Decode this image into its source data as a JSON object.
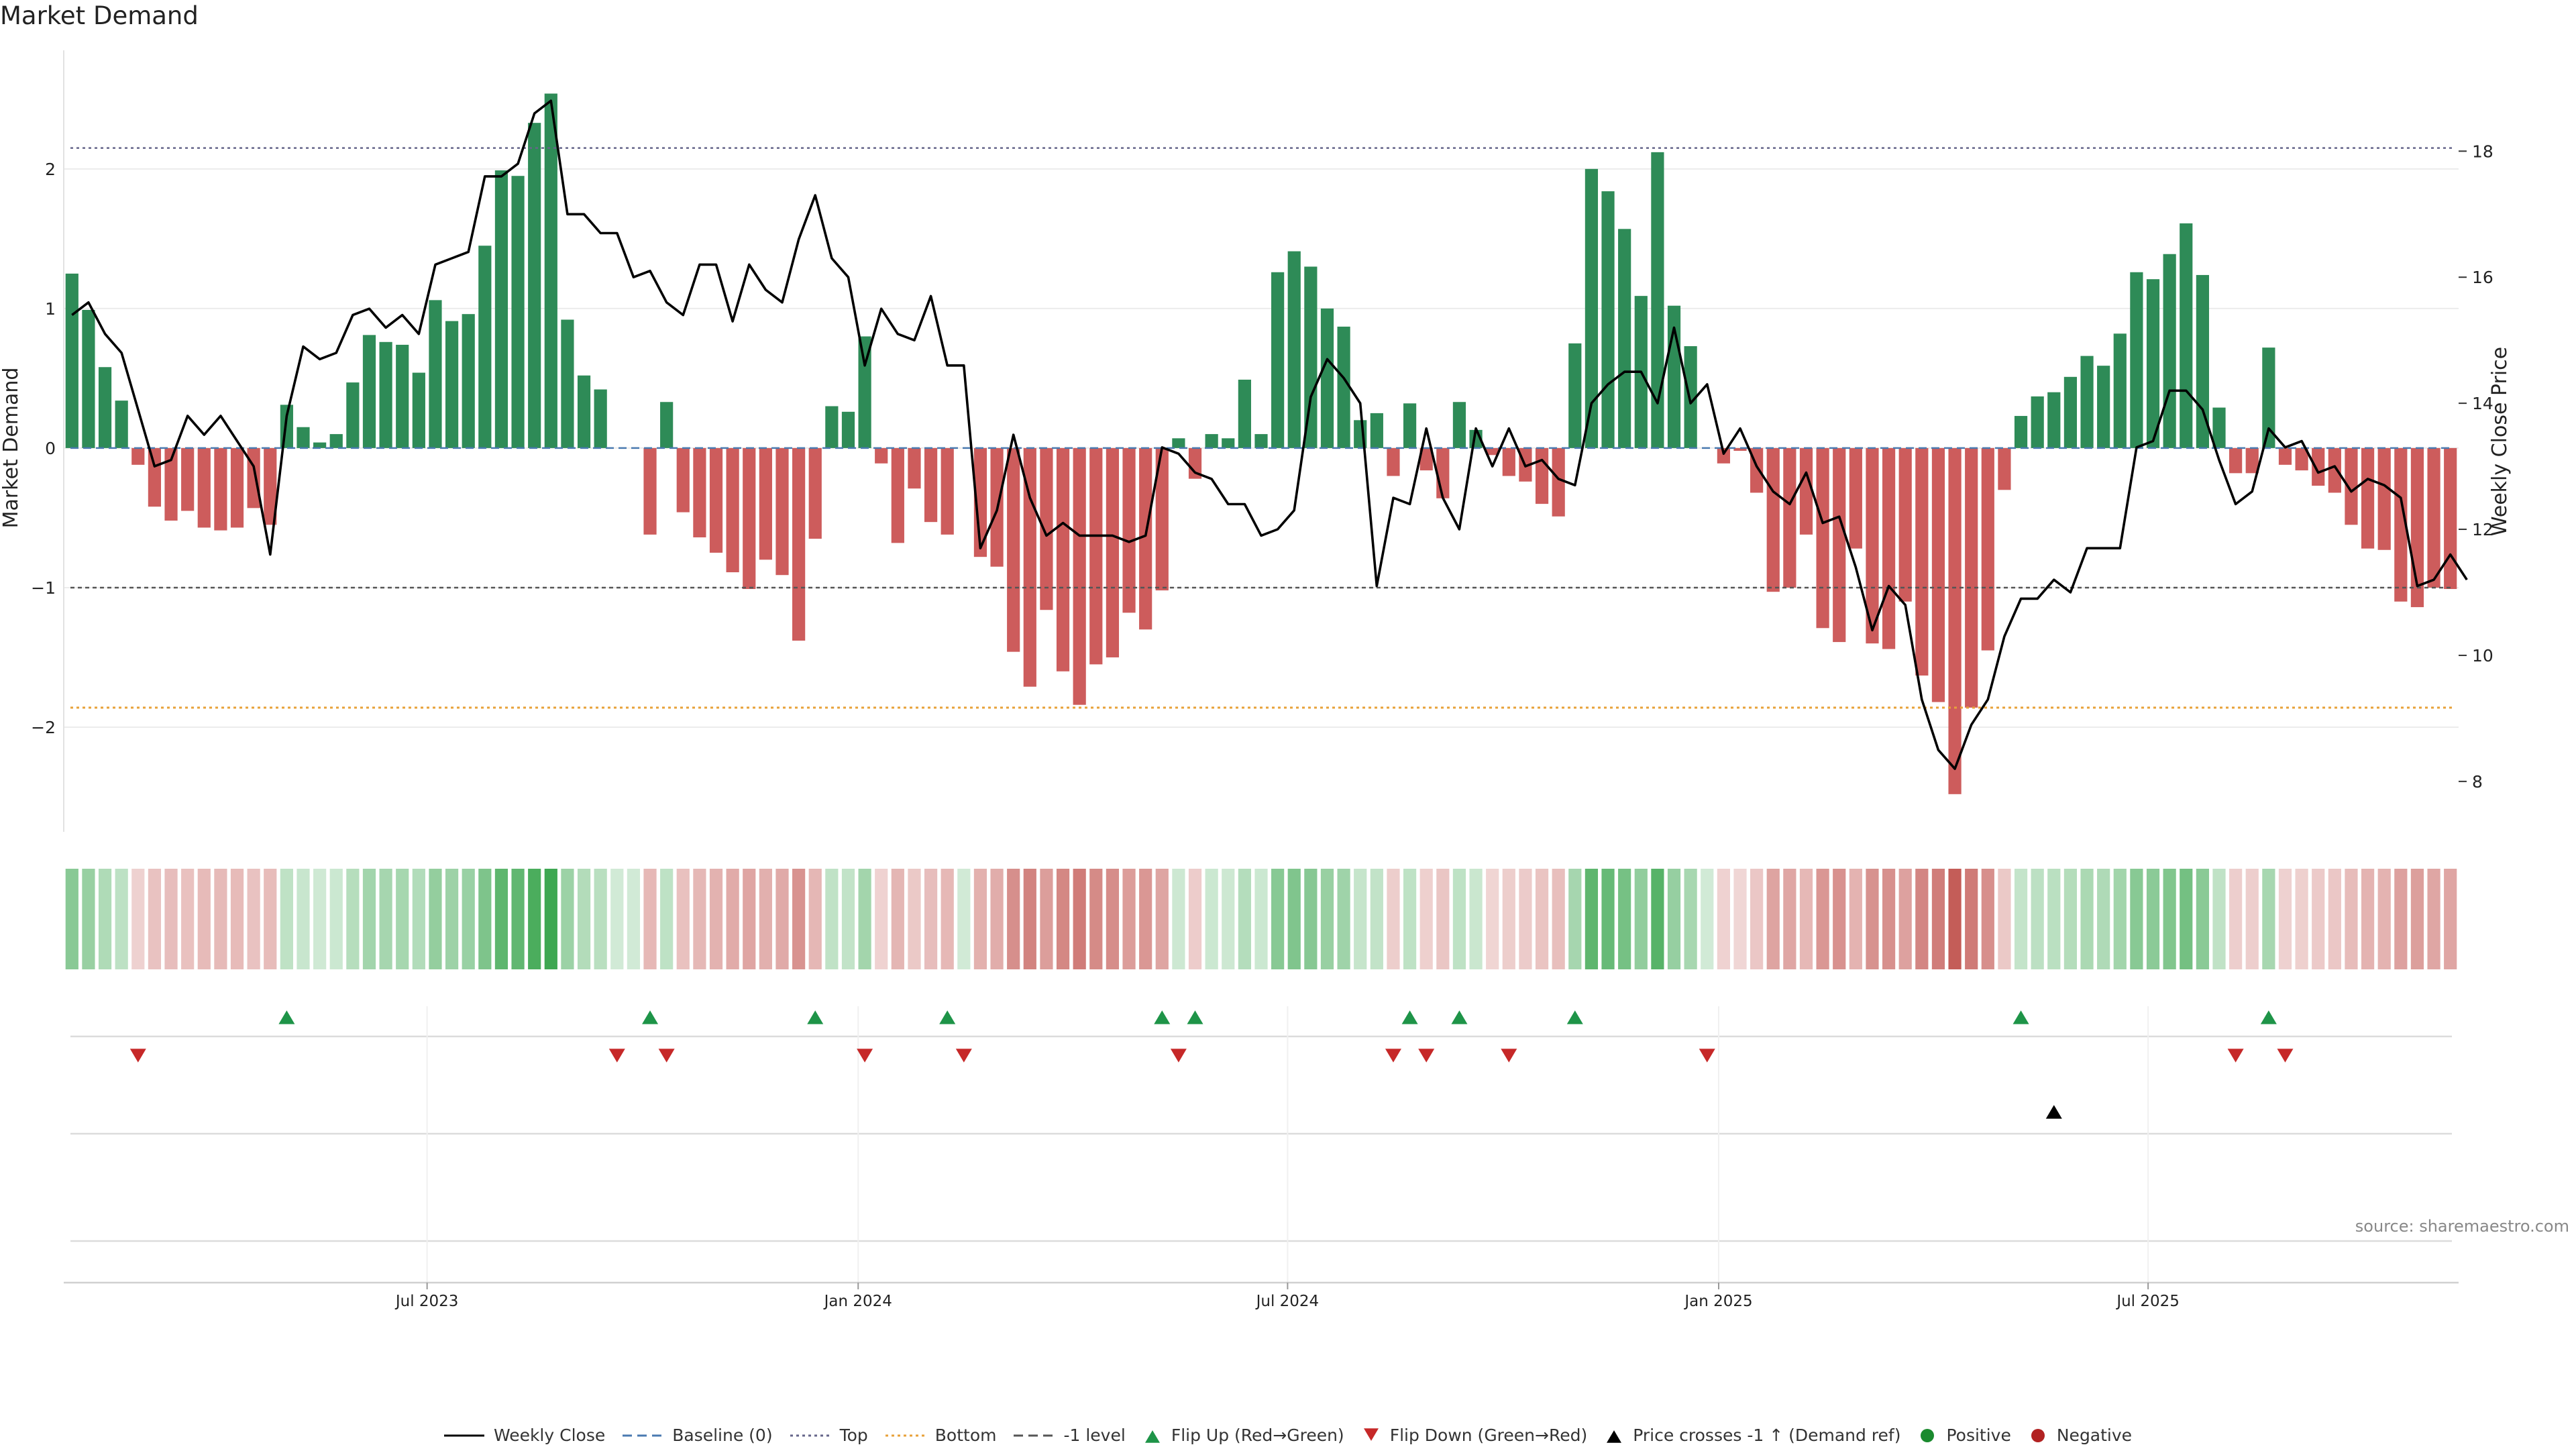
{
  "chart_data": {
    "type": "bar",
    "title": "Market Demand",
    "source": "source: sharemaestro.com",
    "y_left": {
      "label": "Market Demand",
      "range": [
        -2.75,
        2.85
      ],
      "ticks": [
        -2,
        -1,
        0,
        1,
        2
      ],
      "tick_labels": [
        "−2",
        "−1",
        "0",
        "1",
        "2"
      ]
    },
    "y_right": {
      "label": "Weekly Close Price",
      "range": [
        7.2,
        19.6
      ],
      "ticks": [
        8,
        10,
        12,
        14,
        16,
        18
      ],
      "tick_labels": [
        "8",
        "10",
        "12",
        "14",
        "16",
        "18"
      ]
    },
    "x_ticks": [
      {
        "label": "Jul 2023",
        "index": 21.5
      },
      {
        "label": "Jan 2024",
        "index": 47.6
      },
      {
        "label": "Jul 2024",
        "index": 73.6
      },
      {
        "label": "Jan 2025",
        "index": 99.7
      },
      {
        "label": "Jul 2025",
        "index": 125.7
      }
    ],
    "levels": {
      "top": 2.15,
      "bottom": -1.86,
      "minus_one": -1.0,
      "baseline": 0
    },
    "demand": [
      1.25,
      0.99,
      0.58,
      0.34,
      -0.12,
      -0.42,
      -0.52,
      -0.45,
      -0.57,
      -0.59,
      -0.57,
      -0.43,
      -0.55,
      0.31,
      0.15,
      0.04,
      0.1,
      0.47,
      0.81,
      0.76,
      0.74,
      0.54,
      1.06,
      0.91,
      0.96,
      1.45,
      1.99,
      1.95,
      2.33,
      2.54,
      0.92,
      0.52,
      0.42,
      0,
      0,
      -0.62,
      0.33,
      -0.46,
      -0.64,
      -0.75,
      -0.89,
      -1.01,
      -0.8,
      -0.91,
      -1.38,
      -0.65,
      0.3,
      0.26,
      0.8,
      -0.11,
      -0.68,
      -0.29,
      -0.53,
      -0.62,
      0,
      -0.78,
      -0.85,
      -1.46,
      -1.71,
      -1.16,
      -1.6,
      -1.84,
      -1.55,
      -1.5,
      -1.18,
      -1.3,
      -1.02,
      0.07,
      -0.22,
      0.1,
      0.07,
      0.49,
      0.1,
      1.26,
      1.41,
      1.3,
      1.0,
      0.87,
      0.2,
      0.25,
      -0.2,
      0.32,
      -0.16,
      -0.36,
      0.33,
      0.13,
      -0.05,
      -0.2,
      -0.24,
      -0.4,
      -0.49,
      0.75,
      2.0,
      1.84,
      1.57,
      1.09,
      2.12,
      1.02,
      0.73,
      0,
      -0.11,
      -0.02,
      -0.32,
      -1.03,
      -1.0,
      -0.62,
      -1.29,
      -1.39,
      -0.72,
      -1.4,
      -1.44,
      -1.1,
      -1.63,
      -1.82,
      -2.48,
      -1.86,
      -1.45,
      -0.3,
      0.23,
      0.37,
      0.4,
      0.51,
      0.66,
      0.59,
      0.82,
      1.26,
      1.21,
      1.39,
      1.61,
      1.24,
      0.29,
      -0.18,
      -0.18,
      0.72,
      -0.12,
      -0.16,
      -0.27,
      -0.32,
      -0.55,
      -0.72,
      -0.73,
      -1.1,
      -1.14,
      -1.0,
      -1.01
    ],
    "weekly_close": [
      15.4,
      15.6,
      15.1,
      14.8,
      13.9,
      13.0,
      13.1,
      13.8,
      13.5,
      13.8,
      13.4,
      13.0,
      11.6,
      13.8,
      14.9,
      14.7,
      14.8,
      15.4,
      15.5,
      15.2,
      15.4,
      15.1,
      16.2,
      16.3,
      16.4,
      17.6,
      17.6,
      17.8,
      18.6,
      18.8,
      17.0,
      17.0,
      16.7,
      16.7,
      16.0,
      16.1,
      15.6,
      15.4,
      16.2,
      16.2,
      15.3,
      16.2,
      15.8,
      15.6,
      16.6,
      17.3,
      16.3,
      16.0,
      14.6,
      15.5,
      15.1,
      15.0,
      15.7,
      14.6,
      14.6,
      11.7,
      12.3,
      13.5,
      12.5,
      11.9,
      12.1,
      11.9,
      11.9,
      11.9,
      11.8,
      11.9,
      13.3,
      13.2,
      12.9,
      12.8,
      12.4,
      12.4,
      11.9,
      12.0,
      12.3,
      14.1,
      14.7,
      14.4,
      14.0,
      11.1,
      12.5,
      12.4,
      13.6,
      12.5,
      12.0,
      13.6,
      13.0,
      13.6,
      13.0,
      13.1,
      12.8,
      12.7,
      14.0,
      14.3,
      14.5,
      14.5,
      14.0,
      15.2,
      14.0,
      14.3,
      13.2,
      13.6,
      13.0,
      12.6,
      12.4,
      12.9,
      12.1,
      12.2,
      11.4,
      10.4,
      11.1,
      10.8,
      9.3,
      8.5,
      8.2,
      8.9,
      9.3,
      10.3,
      10.9,
      10.9,
      11.2,
      11.0,
      11.7,
      11.7,
      11.7,
      13.3,
      13.4,
      14.2,
      14.2,
      13.9,
      13.1,
      12.4,
      12.6,
      13.6,
      13.3,
      13.4,
      12.9,
      13.0,
      12.6,
      12.8,
      12.7,
      12.5,
      11.1,
      11.2,
      11.6,
      11.2
    ],
    "flip_up_indices": [
      13,
      35,
      45,
      53,
      66,
      68,
      81,
      84,
      91,
      118,
      133
    ],
    "flip_down_indices": [
      4,
      33,
      36,
      48,
      54,
      67,
      80,
      82,
      87,
      99,
      131,
      134
    ],
    "price_cross_indices": [
      120
    ],
    "legend": [
      {
        "label": "Weekly Close",
        "symbol": "line",
        "color": "#000000"
      },
      {
        "label": "Baseline (0)",
        "symbol": "dash",
        "color": "#4a7ab0"
      },
      {
        "label": "Top",
        "symbol": "dot",
        "color": "#66668a"
      },
      {
        "label": "Bottom",
        "symbol": "dot",
        "color": "#e8a23a"
      },
      {
        "label": "-1 level",
        "symbol": "dash",
        "color": "#555555"
      },
      {
        "label": "Flip Up (Red→Green)",
        "symbol": "tri-up",
        "color": "#1e9448"
      },
      {
        "label": "Flip Down (Green→Red)",
        "symbol": "tri-down",
        "color": "#c62828"
      },
      {
        "label": "Price crosses -1 ↑ (Demand ref)",
        "symbol": "tri-up",
        "color": "#000000"
      },
      {
        "label": "Positive",
        "symbol": "circle",
        "color": "#1a8a2e"
      },
      {
        "label": "Negative",
        "symbol": "circle",
        "color": "#b22222"
      }
    ],
    "colors": {
      "positive": "#2e8b57",
      "negative": "#cd5c5c",
      "strip_positive_rgb": [
        46,
        160,
        67
      ],
      "strip_negative_rgb": [
        190,
        75,
        70
      ]
    }
  }
}
